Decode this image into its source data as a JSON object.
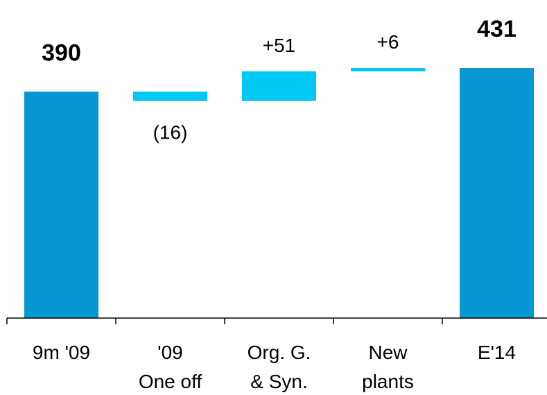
{
  "chart_data": {
    "type": "bar",
    "subtype": "waterfall",
    "categories": [
      [
        "9m '09"
      ],
      [
        "'09",
        "One off"
      ],
      [
        "Org. G.",
        "& Syn."
      ],
      [
        "New",
        "plants"
      ],
      [
        "E'14"
      ]
    ],
    "bars": [
      {
        "kind": "total",
        "start": 0,
        "end": 390,
        "label": "390"
      },
      {
        "kind": "delta",
        "start": 390,
        "end": 374,
        "label": "(16)"
      },
      {
        "kind": "delta",
        "start": 374,
        "end": 425,
        "label": "+51"
      },
      {
        "kind": "delta",
        "start": 425,
        "end": 431,
        "label": "+6"
      },
      {
        "kind": "total",
        "start": 0,
        "end": 431,
        "label": "431"
      }
    ],
    "ylim": [
      0,
      431
    ],
    "title": "",
    "xlabel": "",
    "ylabel": "",
    "grid": false,
    "colors": {
      "total": "#0797D4",
      "delta": "#00C8F5",
      "axis": "#000000"
    }
  }
}
